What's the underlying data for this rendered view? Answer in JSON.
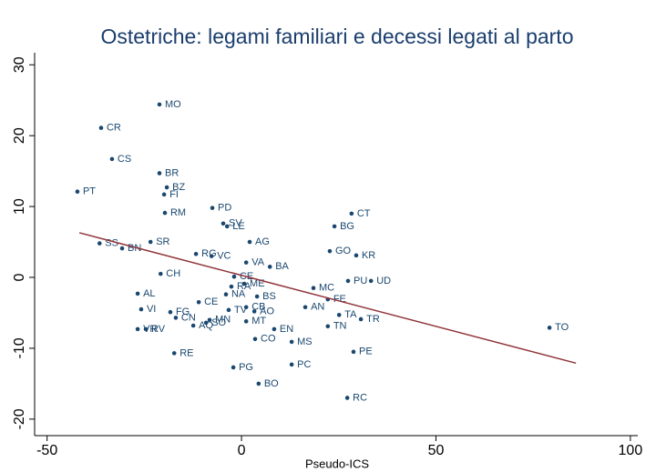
{
  "chart_data": {
    "type": "scatter",
    "title": "Ostetriche: legami familiari e decessi legati al parto",
    "x_label": "Pseudo-ICS",
    "color": "#1a476f",
    "x": [
      -21.1,
      -36.1,
      -33.3,
      -21.1,
      -19.2,
      -42.2,
      -19.9,
      -7.5,
      -19.7,
      28.3,
      -4.7,
      -3.7,
      23.9,
      -23.4,
      2.1,
      -36.5,
      -30.7,
      22.7,
      -11.7,
      -7.7,
      29.5,
      1.2,
      7.3,
      -20.8,
      -1.9,
      27.4,
      33.3,
      0.7,
      -2.6,
      18.5,
      -26.7,
      -4.0,
      4.0,
      22.2,
      -11.0,
      -25.8,
      16.4,
      1.2,
      3.3,
      -3.3,
      -18.3,
      25.1,
      -16.9,
      30.7,
      -8.2,
      -9.1,
      -12.4,
      1.2,
      22.2,
      -26.7,
      -24.6,
      8.4,
      79.2,
      3.5,
      12.9,
      -17.3,
      28.8,
      12.9,
      -2.1,
      4.4,
      27.2
    ],
    "values": [
      24.4,
      21.1,
      16.7,
      14.7,
      12.7,
      12.1,
      11.7,
      9.8,
      9.1,
      9.0,
      7.6,
      7.2,
      7.2,
      5.0,
      5.0,
      4.8,
      4.1,
      3.7,
      3.3,
      3.0,
      3.1,
      2.1,
      1.5,
      0.5,
      0.1,
      -0.5,
      -0.5,
      -0.9,
      -1.3,
      -1.5,
      -2.3,
      -2.4,
      -2.7,
      -3.1,
      -3.5,
      -4.5,
      -4.2,
      -4.2,
      -4.8,
      -4.6,
      -4.9,
      -5.3,
      -5.7,
      -5.9,
      -6.0,
      -6.4,
      -6.8,
      -6.2,
      -6.9,
      -7.3,
      -7.3,
      -7.3,
      -7.1,
      -8.7,
      -9.1,
      -10.7,
      -10.5,
      -12.3,
      -12.7,
      -15.0,
      -17.0
    ],
    "point_labels": [
      "MO",
      "CR",
      "CS",
      "BR",
      "BZ",
      "PT",
      "FI",
      "PD",
      "RM",
      "CT",
      "SV",
      "LE",
      "BG",
      "SR",
      "AG",
      "SS",
      "BN",
      "GO",
      "RG",
      "VC",
      "KR",
      "VA",
      "BA",
      "CH",
      "CE",
      "PU",
      "UD",
      "ME",
      "RA",
      "MC",
      "AL",
      "NA",
      "BS",
      "FE",
      "CE",
      "VI",
      "AN",
      "CB",
      "AO",
      "TV",
      "FG",
      "TA",
      "CN",
      "TR",
      "MN",
      "SO",
      "AQ",
      "MT",
      "TN",
      "VR",
      "RV",
      "EN",
      "TO",
      "CO",
      "MS",
      "RE",
      "PE",
      "PC",
      "PG",
      "BO",
      "RC"
    ],
    "fit_line": {
      "color": "#90353b",
      "x": [
        -41.7,
        86.0
      ],
      "values": [
        6.3,
        -12.1
      ]
    },
    "xlim": [
      -53.2,
      101.9
    ],
    "xticks": [
      -50,
      0,
      50,
      100
    ],
    "ylim": [
      -22.2,
      31.7
    ],
    "yticks": [
      -20,
      -10,
      0,
      10,
      20,
      30
    ]
  }
}
